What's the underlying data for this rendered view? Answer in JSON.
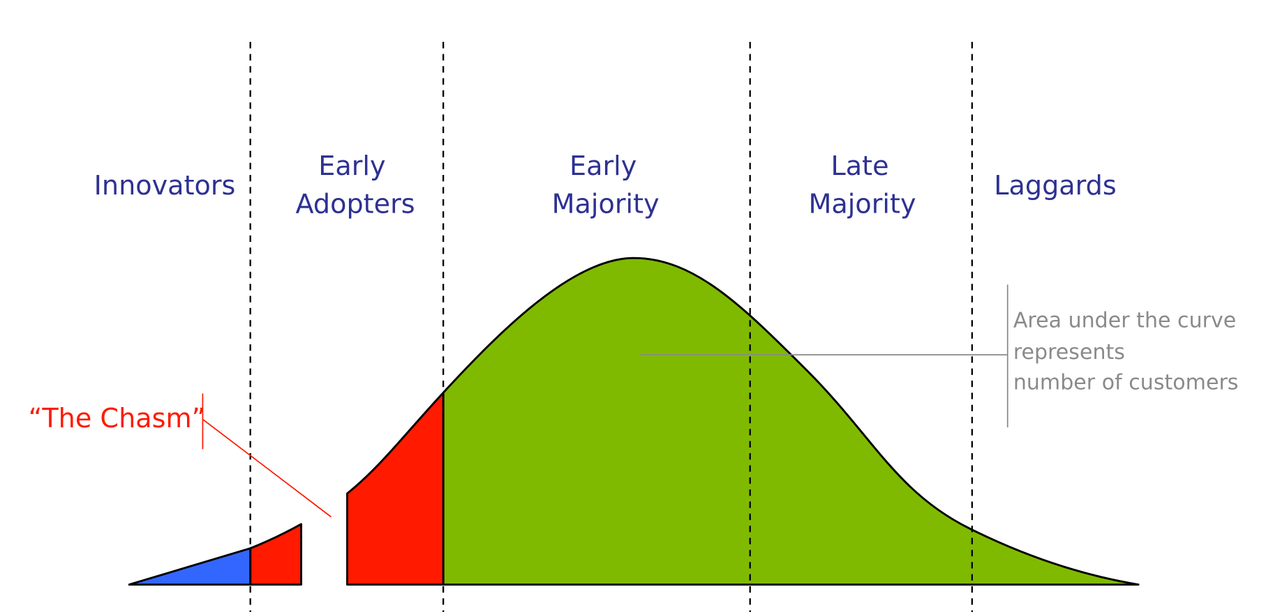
{
  "segments": [
    {
      "label_lines": [
        "Innovators"
      ]
    },
    {
      "label_lines": [
        "Early",
        "Adopters"
      ]
    },
    {
      "label_lines": [
        "Early",
        "Majority"
      ]
    },
    {
      "label_lines": [
        "Late",
        "Majority"
      ]
    },
    {
      "label_lines": [
        "Laggards"
      ]
    }
  ],
  "chasm": {
    "label": "“The Chasm”"
  },
  "annotation": {
    "lines": [
      "Area under the curve",
      "represents",
      "number of customers"
    ]
  }
}
